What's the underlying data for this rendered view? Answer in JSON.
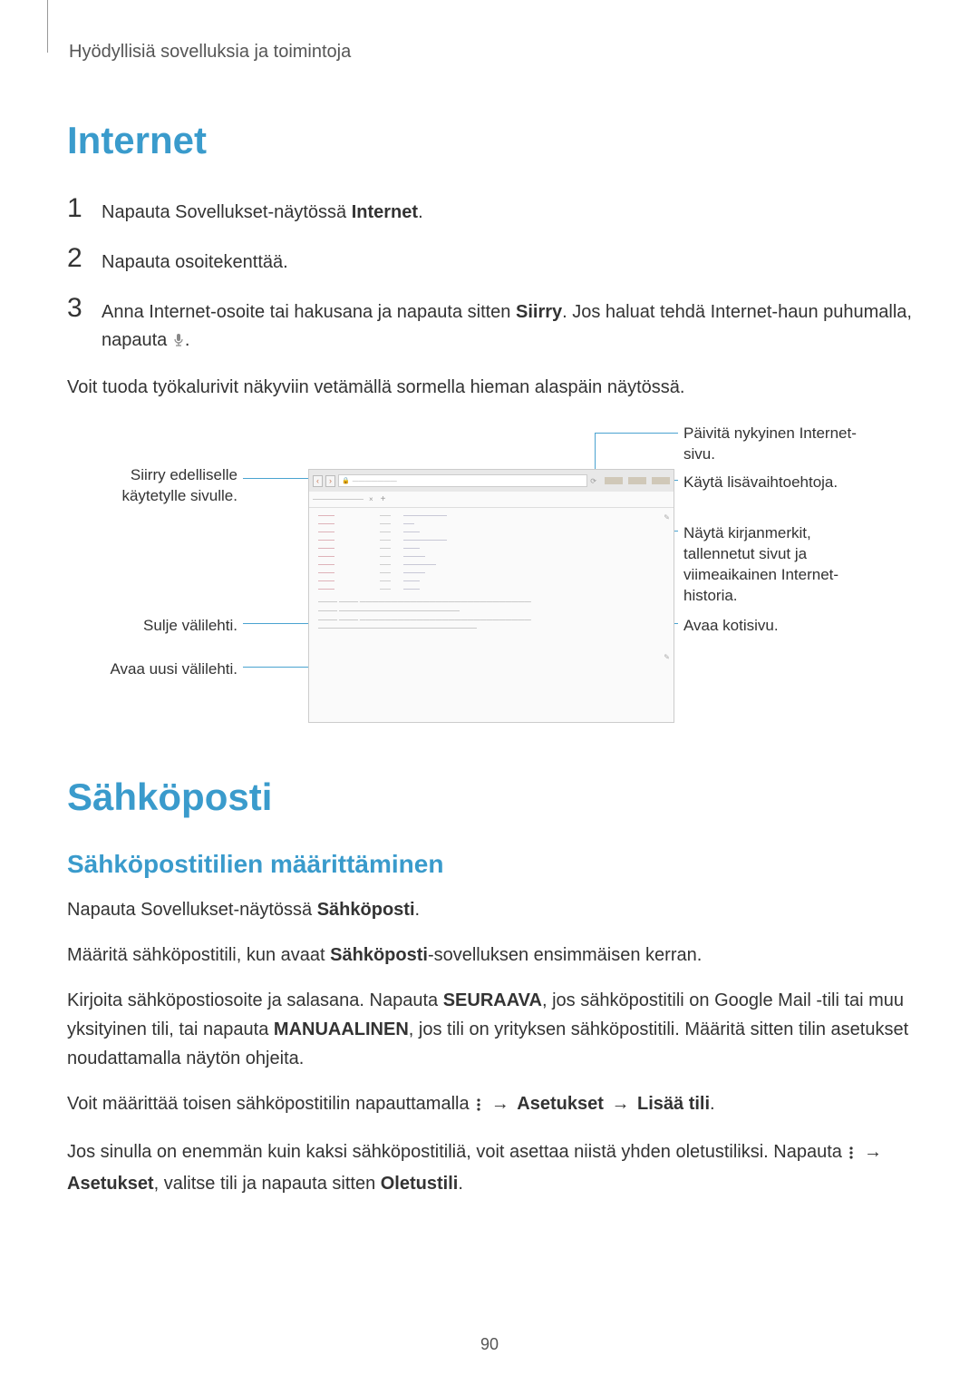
{
  "breadcrumb": "Hyödyllisiä sovelluksia ja toimintoja",
  "page_number": "90",
  "internet": {
    "title": "Internet",
    "steps": [
      {
        "num": "1",
        "pre": "Napauta Sovellukset-näytössä ",
        "bold": "Internet",
        "post": "."
      },
      {
        "num": "2",
        "pre": "Napauta osoitekenttää.",
        "bold": "",
        "post": ""
      },
      {
        "num": "3",
        "pre": "Anna Internet-osoite tai hakusana ja napauta sitten ",
        "bold": "Siirry",
        "post": ". Jos haluat tehdä Internet-haun puhumalla, napauta "
      }
    ],
    "after_steps": "Voit tuoda työkalurivit näkyviin vetämällä sormella hieman alaspäin näytössä."
  },
  "diagram": {
    "labels": {
      "refresh": "Päivitä nykyinen Internet-sivu.",
      "back": "Siirry edelliselle käytetylle sivulle.",
      "options": "Käytä lisävaihtoehtoja.",
      "bookmarks": "Näytä kirjanmerkit, tallennetut sivut ja viimeaikainen Internet-historia.",
      "close_tab": "Sulje välilehti.",
      "home": "Avaa kotisivu.",
      "new_tab": "Avaa uusi välilehti."
    },
    "line_color": "#4aa3d0",
    "label_fontsize": 17,
    "screenshot": {
      "addr_placeholder": "———————",
      "tab_text": "————————",
      "rows": [
        [
          "———",
          "——",
          "————————"
        ],
        [
          "———",
          "——",
          "——"
        ],
        [
          "———",
          "——",
          "———"
        ],
        [
          "———",
          "——",
          "————————"
        ],
        [
          "———",
          "——",
          "———"
        ],
        [
          "———",
          "——",
          "————"
        ],
        [
          "———",
          "——",
          "——————"
        ],
        [
          "———",
          "——",
          "————"
        ],
        [
          "———",
          "——",
          "———"
        ],
        [
          "———",
          "——",
          "———"
        ]
      ]
    }
  },
  "email": {
    "title": "Sähköposti",
    "subtitle": "Sähköpostitilien määrittäminen",
    "p1_pre": "Napauta Sovellukset-näytössä ",
    "p1_bold": "Sähköposti",
    "p1_post": ".",
    "p2_pre": "Määritä sähköpostitili, kun avaat ",
    "p2_bold": "Sähköposti",
    "p2_post": "-sovelluksen ensimmäisen kerran.",
    "p3_pre": "Kirjoita sähköpostiosoite ja salasana. Napauta ",
    "p3_b1": "SEURAAVA",
    "p3_mid": ", jos sähköpostitili on Google Mail -tili tai muu yksityinen tili, tai napauta ",
    "p3_b2": "MANUAALINEN",
    "p3_post": ", jos tili on yrityksen sähköpostitili. Määritä sitten tilin asetukset noudattamalla näytön ohjeita.",
    "p4_pre": "Voit määrittää toisen sähköpostitilin napauttamalla ",
    "p4_arrow1": " → ",
    "p4_b1": "Asetukset",
    "p4_arrow2": " → ",
    "p4_b2": "Lisää tili",
    "p4_post": ".",
    "p5_pre": "Jos sinulla on enemmän kuin kaksi sähköpostitiliä, voit asettaa niistä yhden oletustiliksi. Napauta ",
    "p5_arrow": " → ",
    "p5_b1": "Asetukset",
    "p5_mid": ", valitse tili ja napauta sitten ",
    "p5_b2": "Oletustili",
    "p5_post": "."
  }
}
